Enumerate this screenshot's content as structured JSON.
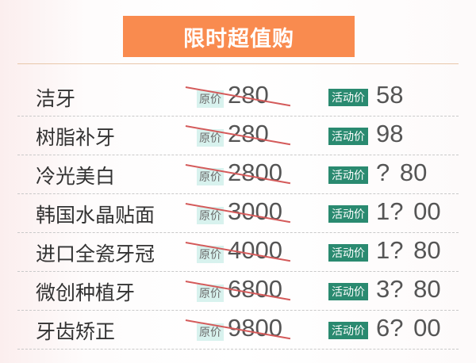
{
  "banner": {
    "title": "限时超值购",
    "color": "#F98B4F"
  },
  "tags": {
    "original": "原价",
    "activity": "活动价"
  },
  "colors": {
    "activity_tag": "#2A8A70",
    "original_tag": "#D8F2EE",
    "strike": "#D45A5A"
  },
  "items": [
    {
      "name": "洁牙",
      "original": "280",
      "activity": "58"
    },
    {
      "name": "树脂补牙",
      "original": "280",
      "activity": "98"
    },
    {
      "name": "冷光美白",
      "original": "2800",
      "activity": "? 80"
    },
    {
      "name": "韩国水晶贴面",
      "original": "3000",
      "activity": "1? 00"
    },
    {
      "name": "进口全瓷牙冠",
      "original": "4000",
      "activity": "1? 80"
    },
    {
      "name": "微创种植牙",
      "original": "6800",
      "activity": "3? 80"
    },
    {
      "name": "牙齿矫正",
      "original": "9800",
      "activity": "6? 00"
    }
  ]
}
